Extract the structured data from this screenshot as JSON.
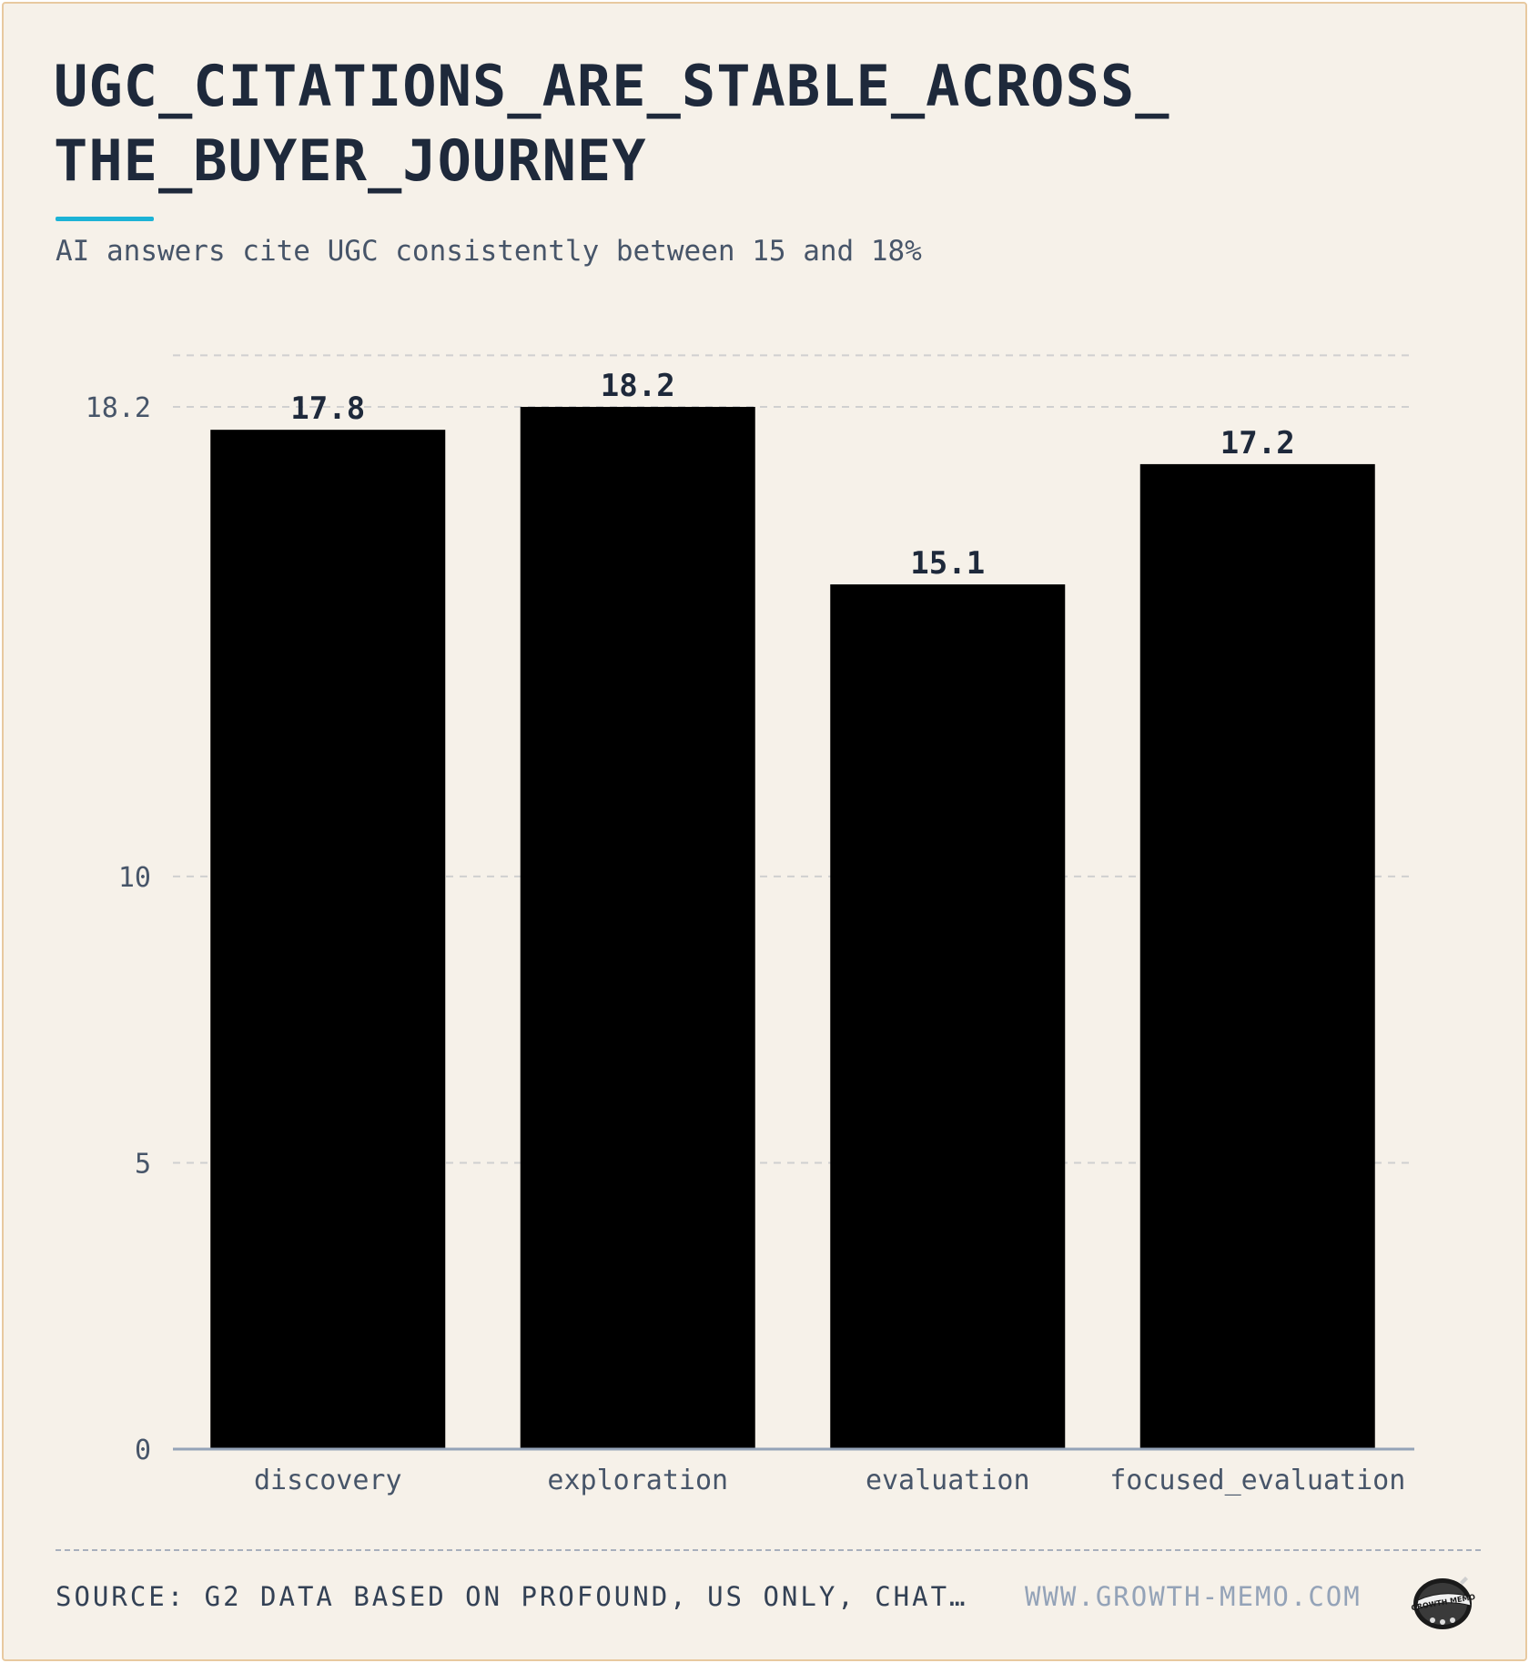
{
  "header": {
    "title_line1": "UGC_CITATIONS_ARE_STABLE_ACROSS_",
    "title_line2": "THE_BUYER_JOURNEY",
    "subtitle": "AI answers cite UGC consistently between 15 and 18%"
  },
  "footer": {
    "source": "SOURCE: G2 DATA BASED ON PROFOUND, US ONLY, CHAT…",
    "site": "WWW.GROWTH-MEMO.COM",
    "logo_text": "GROWTH MEMO"
  },
  "colors": {
    "bar": "#000000",
    "accent": "#1cb3d6",
    "text": "#1e293b",
    "muted": "#475569",
    "gridline": "#d0d0d0",
    "axis": "#94a3b8"
  },
  "chart_data": {
    "type": "bar",
    "title": "UGC_CITATIONS_ARE_STABLE_ACROSS_THE_BUYER_JOURNEY",
    "subtitle": "AI answers cite UGC consistently between 15 and 18%",
    "categories": [
      "discovery",
      "exploration",
      "evaluation",
      "focused_evaluation"
    ],
    "values": [
      17.8,
      18.2,
      15.1,
      17.2
    ],
    "value_labels": [
      "17.8",
      "18.2",
      "15.1",
      "17.2"
    ],
    "yticks": [
      0,
      5,
      10,
      18.2
    ],
    "ytick_labels": [
      "0",
      "5",
      "10",
      "18.2"
    ],
    "ylim": [
      0,
      19.1
    ],
    "grid": true,
    "xlabel": "",
    "ylabel": ""
  }
}
